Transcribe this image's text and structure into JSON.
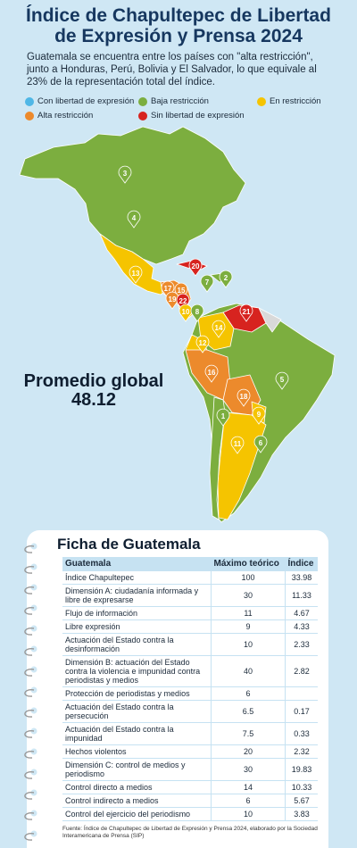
{
  "header": {
    "title_line1": "Índice de Chapultepec de Libertad",
    "title_line2": "de Expresión y Prensa 2024",
    "intro": "Guatemala se encuentra entre los países con \"alta restricción\", junto a Honduras, Perú, Bolivia y El Salvador, lo que equivale al 23% de la representación total del índice."
  },
  "legend": [
    {
      "label": "Con libertad de expresión",
      "color": "#4fb7e6"
    },
    {
      "label": "Baja restricción",
      "color": "#7cae3f"
    },
    {
      "label": "En restricción",
      "color": "#f5c400"
    },
    {
      "label": "Alta restricción",
      "color": "#ec8a2c"
    },
    {
      "label": "Sin libertad de expresión",
      "color": "#d7231f"
    }
  ],
  "map": {
    "pins": [
      {
        "label": "3",
        "color": "#7cae3f"
      },
      {
        "label": "4",
        "color": "#7cae3f"
      },
      {
        "label": "13",
        "color": "#f5c400"
      },
      {
        "label": "20",
        "color": "#d7231f"
      },
      {
        "label": "7",
        "color": "#7cae3f"
      },
      {
        "label": "2",
        "color": "#7cae3f"
      },
      {
        "label": "17",
        "color": "#ec8a2c"
      },
      {
        "label": "15",
        "color": "#ec8a2c"
      },
      {
        "label": "19",
        "color": "#ec8a2c"
      },
      {
        "label": "22",
        "color": "#d7231f"
      },
      {
        "label": "10",
        "color": "#f5c400"
      },
      {
        "label": "8",
        "color": "#7cae3f"
      },
      {
        "label": "21",
        "color": "#d7231f"
      },
      {
        "label": "14",
        "color": "#f5c400"
      },
      {
        "label": "12",
        "color": "#f5c400"
      },
      {
        "label": "16",
        "color": "#ec8a2c"
      },
      {
        "label": "5",
        "color": "#7cae3f"
      },
      {
        "label": "18",
        "color": "#ec8a2c"
      },
      {
        "label": "9",
        "color": "#f5c400"
      },
      {
        "label": "1",
        "color": "#7cae3f"
      },
      {
        "label": "11",
        "color": "#f5c400"
      },
      {
        "label": "6",
        "color": "#7cae3f"
      }
    ],
    "average_label": "Promedio global",
    "average_value": "48.12"
  },
  "table": {
    "title": "Ficha de Guatemala",
    "columns": [
      "Guatemala",
      "Máximo teórico",
      "Índice"
    ],
    "rows": [
      [
        "Índice Chapultepec",
        100,
        33.98
      ],
      [
        "Dimensión A: ciudadanía informada y libre de expresarse",
        30,
        11.33
      ],
      [
        "Flujo de información",
        11,
        4.67
      ],
      [
        "Libre expresión",
        9,
        4.33
      ],
      [
        "Actuación del Estado contra la desinformación",
        10,
        2.33
      ],
      [
        "Dimensión B: actuación del Estado contra la violencia e impunidad contra periodistas y medios",
        40,
        2.82
      ],
      [
        "Protección de periodistas y medios",
        6,
        null
      ],
      [
        "Actuación del Estado contra la persecución",
        6.5,
        0.17
      ],
      [
        "Actuación del Estado contra la impunidad",
        7.5,
        0.33
      ],
      [
        "Hechos violentos",
        20,
        2.32
      ],
      [
        "Dimensión C: control de medios y periodismo",
        30,
        19.83
      ],
      [
        "Control directo a medios",
        14,
        10.33
      ],
      [
        "Control indirecto a medios",
        6,
        5.67
      ],
      [
        "Control del ejercicio del periodismo",
        10,
        3.83
      ]
    ]
  },
  "source": "Fuente: Índice de Chapultepec de Libertad de Expresión y Prensa 2024, elaborado por la Sociedad Interamericana de Prensa (SIP)"
}
